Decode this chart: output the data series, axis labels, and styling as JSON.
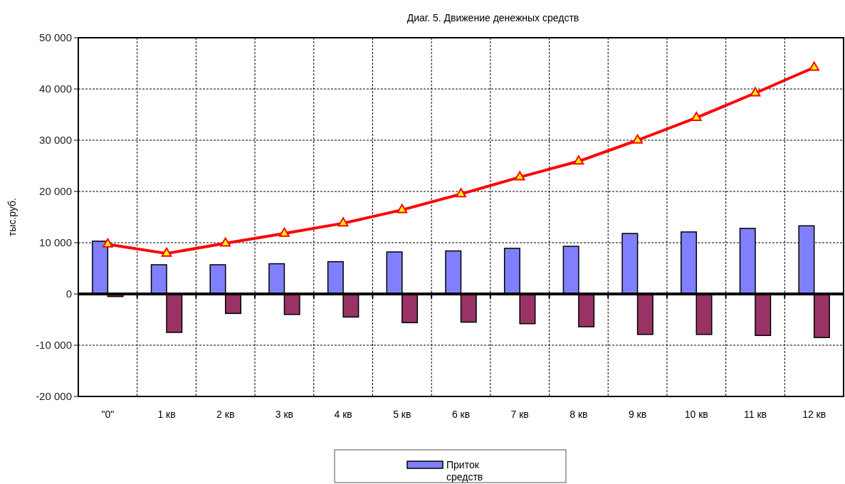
{
  "chart_data": {
    "type": "bar",
    "title": "Диаг. 5. Движение денежных  средств",
    "ylabel": "тыс.руб.",
    "categories": [
      "\"0\"",
      "1 кв",
      "2 кв",
      "3 кв",
      "4 кв",
      "5 кв",
      "6 кв",
      "7 кв",
      "8 кв",
      "9 кв",
      "10 кв",
      "11 кв",
      "12 кв"
    ],
    "series": [
      {
        "name": "Приток средств",
        "color": "#8080ff",
        "values": [
          10300,
          5700,
          5700,
          5900,
          6300,
          8200,
          8400,
          8900,
          9300,
          11800,
          12100,
          12800,
          13300
        ]
      },
      {
        "color": "#993366",
        "values": [
          -500,
          -7500,
          -3800,
          -4000,
          -4500,
          -5600,
          -5500,
          -5800,
          -6400,
          -7900,
          -7900,
          -8100,
          -8500
        ]
      },
      {
        "type": "line",
        "color": "#ff0000",
        "marker": "triangle",
        "values": [
          9700,
          7900,
          9900,
          11800,
          13800,
          16400,
          19500,
          22800,
          25900,
          30000,
          34400,
          39200,
          44200
        ]
      }
    ],
    "ylim": [
      -20000,
      50000
    ],
    "yticks": [
      {
        "value": -20000,
        "label": "-20 000"
      },
      {
        "value": -10000,
        "label": "-10 000"
      },
      0,
      {
        "value": 10000,
        "label": "10 000"
      },
      {
        "value": 20000,
        "label": "20 000"
      },
      {
        "value": 30000,
        "label": "30 000"
      },
      {
        "value": 40000,
        "label": "40 000"
      },
      {
        "value": 50000,
        "label": "50 000"
      }
    ],
    "grid": true,
    "legend": "bottom"
  }
}
